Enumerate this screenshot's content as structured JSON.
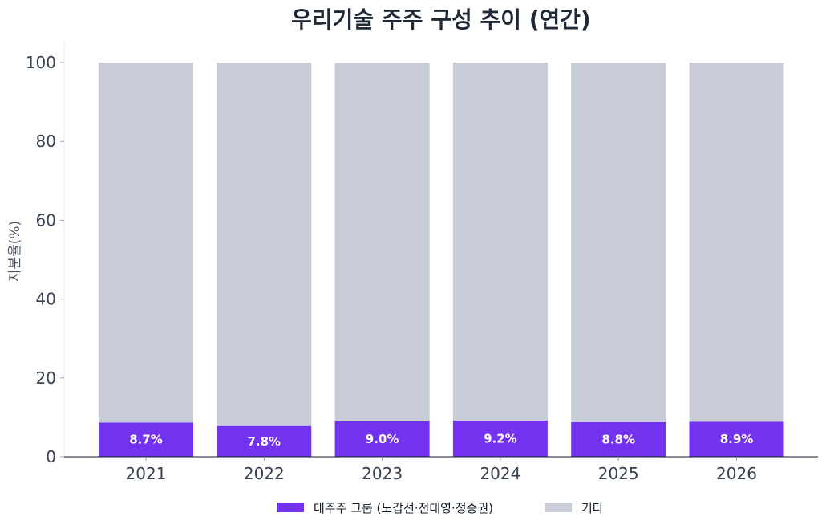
{
  "chart_data": {
    "type": "bar",
    "stacked": true,
    "title": "우리기술 주주 구성 추이 (연간)",
    "xlabel": "",
    "ylabel": "지분율(%)",
    "ylim": [
      0,
      100
    ],
    "yticks": [
      "0",
      "20",
      "40",
      "60",
      "80",
      "100"
    ],
    "categories": [
      "2021",
      "2022",
      "2023",
      "2024",
      "2025",
      "2026"
    ],
    "series": [
      {
        "name": "대주주 그룹 (노갑선·전대영·정승권)",
        "color": "#7332ef",
        "values": [
          8.7,
          7.8,
          9.0,
          9.2,
          8.8,
          8.9
        ],
        "labels": [
          "8.7%",
          "7.8%",
          "9.0%",
          "9.2%",
          "8.8%",
          "8.9%"
        ]
      },
      {
        "name": "기타",
        "color": "#c8ccd6",
        "values": [
          91.3,
          92.2,
          91.0,
          90.8,
          91.2,
          91.1
        ]
      }
    ],
    "grid": false,
    "legend_position": "bottom"
  }
}
